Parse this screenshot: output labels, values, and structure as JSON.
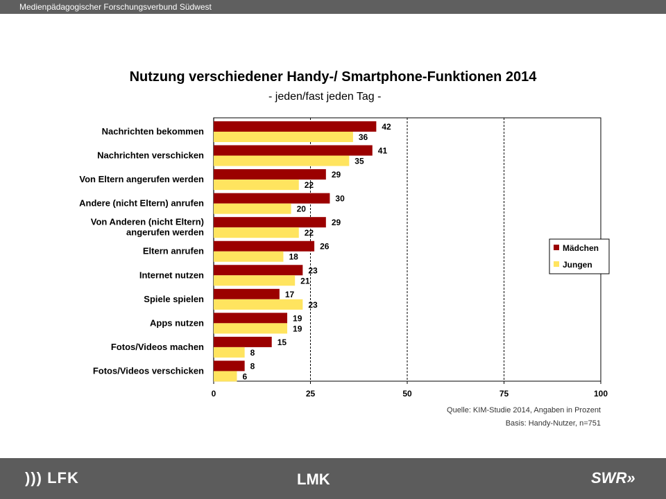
{
  "header": {
    "org": "Medienpädagogischer Forschungsverbund Südwest"
  },
  "chart_data": {
    "type": "bar",
    "orientation": "horizontal",
    "title": "Nutzung verschiedener Handy-/ Smartphone-Funktionen 2014",
    "subtitle": "- jeden/fast jeden Tag -",
    "categories": [
      "Nachrichten bekommen",
      "Nachrichten verschicken",
      "Von Eltern angerufen werden",
      "Andere (nicht Eltern) anrufen",
      "Von Anderen (nicht Eltern)\nangerufen werden",
      "Eltern anrufen",
      "Internet nutzen",
      "Spiele spielen",
      "Apps nutzen",
      "Fotos/Videos machen",
      "Fotos/Videos verschicken"
    ],
    "series": [
      {
        "name": "Mädchen",
        "color": "#9b0000",
        "values": [
          42,
          41,
          29,
          30,
          29,
          26,
          23,
          17,
          19,
          15,
          8
        ]
      },
      {
        "name": "Jungen",
        "color": "#ffe45f",
        "values": [
          36,
          35,
          22,
          20,
          22,
          18,
          21,
          23,
          19,
          8,
          6
        ]
      }
    ],
    "xlim": [
      0,
      100
    ],
    "xticks": [
      0,
      25,
      50,
      75,
      100
    ],
    "grid": "dashed vertical",
    "legend_position": "right"
  },
  "source": {
    "line1": "Quelle: KIM-Studie 2014, Angaben in Prozent",
    "line2": "Basis: Handy-Nutzer, n=751"
  },
  "footer": {
    "logo_left": "))) LFK",
    "logo_center": "LMK",
    "logo_right": "SWR»"
  }
}
